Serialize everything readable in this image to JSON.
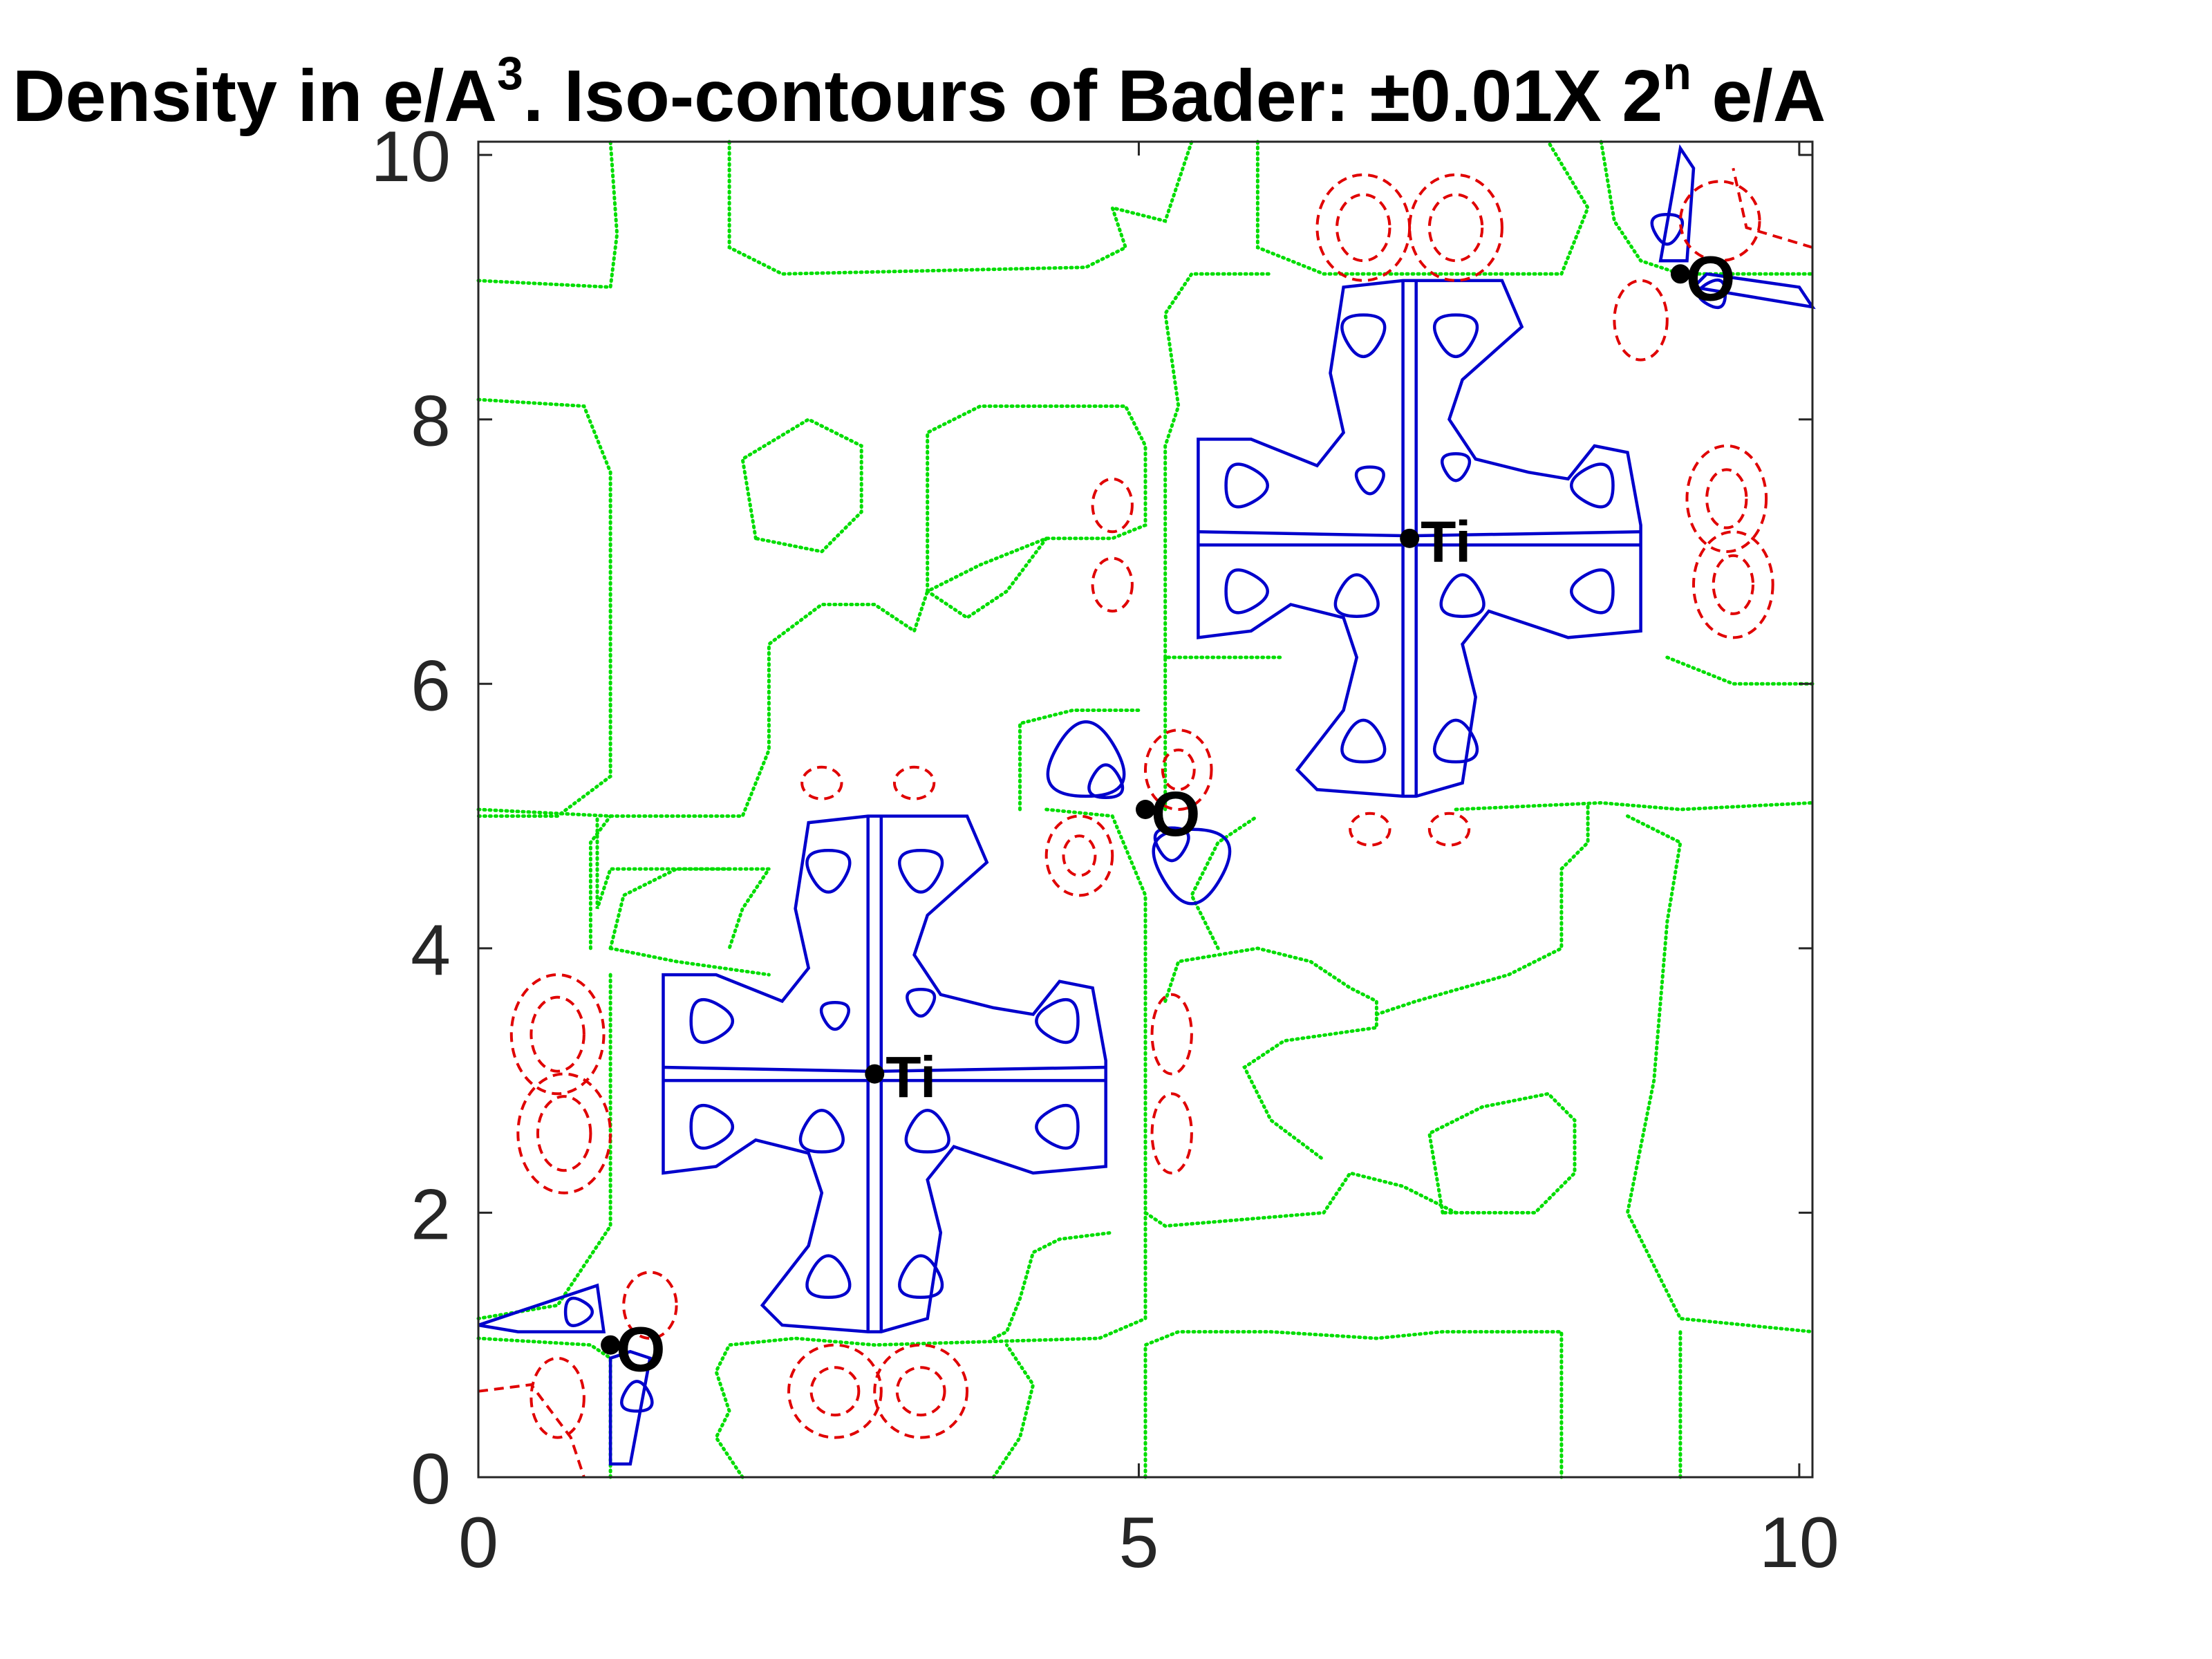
{
  "chart_data": {
    "type": "contour",
    "title": {
      "part1": "Density in e/A",
      "sup1": "3",
      "part2": ". Iso-contours of Bader: ±0.01X 2",
      "sup2": "n",
      "part3": " e/A"
    },
    "xlim": [
      0,
      10.1
    ],
    "ylim": [
      0,
      10.1
    ],
    "xticks": [
      0,
      5,
      10
    ],
    "yticks": [
      0,
      2,
      4,
      6,
      8,
      10
    ],
    "grid": false,
    "line_styles": {
      "positive": {
        "color": "#0000cc",
        "style": "solid"
      },
      "negative": {
        "color": "#e00000",
        "style": "dashed"
      },
      "zero": {
        "color": "#00dd00",
        "style": "dotted"
      }
    },
    "atoms": [
      {
        "label": "Ti",
        "x": 3.0,
        "y": 3.05
      },
      {
        "label": "Ti",
        "x": 7.05,
        "y": 7.1
      },
      {
        "label": "O",
        "x": 1.0,
        "y": 1.0
      },
      {
        "label": "O",
        "x": 5.05,
        "y": 5.05
      },
      {
        "label": "O",
        "x": 9.1,
        "y": 9.1
      }
    ]
  }
}
